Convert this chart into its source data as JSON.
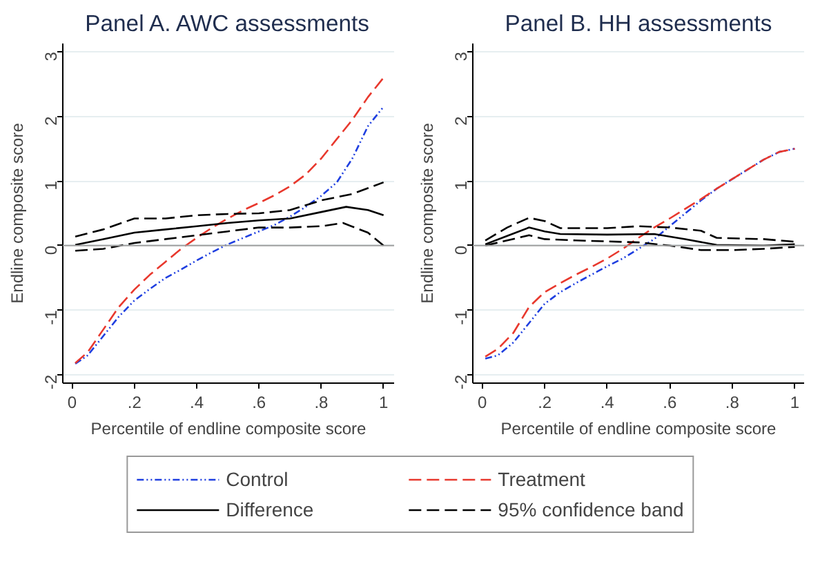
{
  "chart_data": [
    {
      "type": "line",
      "title": "Panel A. AWC assessments",
      "xlabel": "Percentile of endline composite score",
      "ylabel": "Endline composite score",
      "xlim": [
        -0.03,
        1.034
      ],
      "ylim": [
        -2.13,
        3.13
      ],
      "xticks": [
        0,
        {
          "value": 0.2,
          "label": ".2"
        },
        {
          "value": 0.4,
          "label": ".4"
        },
        {
          "value": 0.6,
          "label": ".6"
        },
        {
          "value": 0.8,
          "label": ".8"
        },
        1
      ],
      "yticks": [
        -2,
        -1,
        0,
        1,
        2,
        3
      ],
      "grid": "y",
      "legend": "bottom",
      "ref_lines": [
        {
          "axis": "y",
          "value": 0,
          "color": "#a0a0a0"
        }
      ],
      "series": [
        {
          "name": "Control",
          "color": "#1f3fe0",
          "line_style": "dotted",
          "x": [
            0.01,
            0.05,
            0.1,
            0.15,
            0.2,
            0.25,
            0.3,
            0.35,
            0.4,
            0.45,
            0.5,
            0.55,
            0.6,
            0.65,
            0.7,
            0.75,
            0.8,
            0.85,
            0.9,
            0.95,
            1
          ],
          "values": [
            -1.83,
            -1.7,
            -1.4,
            -1.1,
            -0.85,
            -0.67,
            -0.5,
            -0.37,
            -0.23,
            -0.1,
            0.02,
            0.12,
            0.22,
            0.32,
            0.45,
            0.6,
            0.77,
            0.98,
            1.35,
            1.85,
            2.15
          ]
        },
        {
          "name": "Treatment",
          "color": "#e8382d",
          "line_style": "dashed",
          "x": [
            0.01,
            0.05,
            0.1,
            0.15,
            0.2,
            0.25,
            0.3,
            0.35,
            0.4,
            0.45,
            0.5,
            0.55,
            0.6,
            0.65,
            0.7,
            0.75,
            0.8,
            0.85,
            0.9,
            0.95,
            1
          ],
          "values": [
            -1.82,
            -1.65,
            -1.3,
            -0.95,
            -0.68,
            -0.45,
            -0.25,
            -0.05,
            0.12,
            0.28,
            0.42,
            0.55,
            0.66,
            0.78,
            0.92,
            1.1,
            1.35,
            1.65,
            1.95,
            2.3,
            2.6
          ]
        },
        {
          "name": "Difference",
          "color": "#000000",
          "line_style": "solid",
          "x": [
            0.01,
            0.1,
            0.2,
            0.3,
            0.4,
            0.5,
            0.6,
            0.7,
            0.8,
            0.88,
            0.95,
            1
          ],
          "values": [
            0.01,
            0.1,
            0.2,
            0.25,
            0.3,
            0.35,
            0.39,
            0.42,
            0.52,
            0.6,
            0.55,
            0.47
          ]
        },
        {
          "name": "95% confidence band",
          "color": "#000000",
          "line_style": "dashed",
          "x": [
            0.01,
            0.1,
            0.2,
            0.3,
            0.4,
            0.5,
            0.6,
            0.7,
            0.8,
            0.9,
            1
          ],
          "values": [
            0.14,
            0.25,
            0.42,
            0.42,
            0.47,
            0.49,
            0.5,
            0.55,
            0.7,
            0.8,
            0.98
          ]
        },
        {
          "color": "#000000",
          "line_style": "dashed",
          "x": [
            0.01,
            0.1,
            0.2,
            0.3,
            0.4,
            0.5,
            0.6,
            0.7,
            0.8,
            0.87,
            0.95,
            1
          ],
          "values": [
            -0.08,
            -0.05,
            0.04,
            0.1,
            0.16,
            0.22,
            0.28,
            0.28,
            0.3,
            0.35,
            0.2,
            0.0
          ]
        }
      ]
    },
    {
      "type": "line",
      "title": "Panel B. HH assessments",
      "xlabel": "Percentile of endline composite score",
      "ylabel": "Endline composite score",
      "xlim": [
        -0.03,
        1.03
      ],
      "ylim": [
        -2.13,
        3.13
      ],
      "xticks": [
        0,
        {
          "value": 0.2,
          "label": ".2"
        },
        {
          "value": 0.4,
          "label": ".4"
        },
        {
          "value": 0.6,
          "label": ".6"
        },
        {
          "value": 0.8,
          "label": ".8"
        },
        1
      ],
      "yticks": [
        -2,
        -1,
        0,
        1,
        2,
        3
      ],
      "grid": "y",
      "legend": "bottom",
      "ref_lines": [
        {
          "axis": "y",
          "value": 0,
          "color": "#a0a0a0"
        }
      ],
      "series": [
        {
          "name": "Control",
          "color": "#1f3fe0",
          "line_style": "dotted",
          "x": [
            0.01,
            0.05,
            0.1,
            0.15,
            0.2,
            0.25,
            0.3,
            0.35,
            0.4,
            0.45,
            0.5,
            0.55,
            0.6,
            0.65,
            0.7,
            0.75,
            0.8,
            0.85,
            0.9,
            0.95,
            1
          ],
          "values": [
            -1.75,
            -1.7,
            -1.5,
            -1.2,
            -0.9,
            -0.72,
            -0.58,
            -0.45,
            -0.32,
            -0.2,
            -0.05,
            0.1,
            0.3,
            0.5,
            0.7,
            0.88,
            1.03,
            1.18,
            1.33,
            1.45,
            1.5
          ]
        },
        {
          "name": "Treatment",
          "color": "#e8382d",
          "line_style": "dashed",
          "x": [
            0.01,
            0.05,
            0.1,
            0.15,
            0.2,
            0.25,
            0.3,
            0.35,
            0.4,
            0.45,
            0.5,
            0.55,
            0.6,
            0.65,
            0.7,
            0.75,
            0.8,
            0.85,
            0.9,
            0.95,
            1
          ],
          "values": [
            -1.72,
            -1.6,
            -1.35,
            -0.95,
            -0.72,
            -0.58,
            -0.45,
            -0.33,
            -0.2,
            -0.05,
            0.12,
            0.28,
            0.42,
            0.57,
            0.72,
            0.88,
            1.03,
            1.18,
            1.33,
            1.45,
            1.5
          ]
        },
        {
          "name": "Difference",
          "color": "#000000",
          "line_style": "solid",
          "x": [
            0.01,
            0.08,
            0.15,
            0.2,
            0.25,
            0.4,
            0.55,
            0.65,
            0.75,
            0.9,
            1
          ],
          "values": [
            0.02,
            0.15,
            0.28,
            0.22,
            0.18,
            0.17,
            0.18,
            0.1,
            0.01,
            0.0,
            0.02
          ]
        },
        {
          "name": "95% confidence band",
          "color": "#000000",
          "line_style": "dashed",
          "x": [
            0.01,
            0.08,
            0.15,
            0.2,
            0.25,
            0.4,
            0.5,
            0.6,
            0.7,
            0.75,
            0.9,
            1
          ],
          "values": [
            0.08,
            0.28,
            0.43,
            0.38,
            0.27,
            0.27,
            0.3,
            0.28,
            0.23,
            0.12,
            0.1,
            0.06
          ]
        },
        {
          "color": "#000000",
          "line_style": "dashed",
          "x": [
            0.01,
            0.08,
            0.15,
            0.2,
            0.3,
            0.5,
            0.6,
            0.7,
            0.8,
            0.9,
            1
          ],
          "values": [
            0.0,
            0.08,
            0.16,
            0.1,
            0.08,
            0.05,
            0.0,
            -0.07,
            -0.07,
            -0.05,
            -0.02
          ]
        }
      ]
    }
  ]
}
